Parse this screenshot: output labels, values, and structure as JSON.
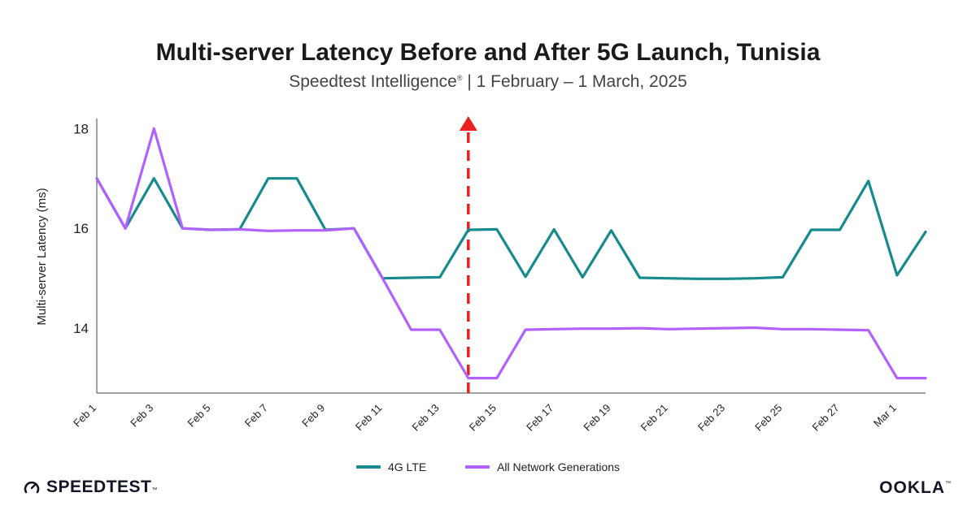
{
  "chart_data": {
    "type": "line",
    "title": "Multi-server Latency Before and After 5G Launch, Tunisia",
    "subtitle_prefix": "Speedtest Intelligence",
    "subtitle_suffix": " | 1 February – 1 March, 2025",
    "ylabel": "Multi-server Latency (ms)",
    "xlabel": "",
    "ylim": [
      12.7,
      18.2
    ],
    "yticks": [
      14,
      16,
      18
    ],
    "x": [
      "Feb 1",
      "Feb 2",
      "Feb 3",
      "Feb 4",
      "Feb 5",
      "Feb 6",
      "Feb 7",
      "Feb 8",
      "Feb 9",
      "Feb 10",
      "Feb 11",
      "Feb 12",
      "Feb 13",
      "Feb 14",
      "Feb 15",
      "Feb 16",
      "Feb 17",
      "Feb 18",
      "Feb 19",
      "Feb 20",
      "Feb 21",
      "Feb 22",
      "Feb 23",
      "Feb 24",
      "Feb 25",
      "Feb 26",
      "Feb 27",
      "Feb 28",
      "Mar 1",
      "Mar 2"
    ],
    "xtick_labels": [
      "Feb 1",
      "Feb 3",
      "Feb 5",
      "Feb 7",
      "Feb 9",
      "Feb 11",
      "Feb 13",
      "Feb 15",
      "Feb 17",
      "Feb 19",
      "Feb 21",
      "Feb 23",
      "Feb 25",
      "Feb 27",
      "Mar 1"
    ],
    "series": [
      {
        "name": "4G LTE",
        "color": "#168a8c",
        "values": [
          17.0,
          16.0,
          17.0,
          16.0,
          15.97,
          15.98,
          17.0,
          17.0,
          15.97,
          16.0,
          15.0,
          15.01,
          15.02,
          15.97,
          15.98,
          15.03,
          15.98,
          15.02,
          15.96,
          15.01,
          15.0,
          14.99,
          14.99,
          15.0,
          15.02,
          15.97,
          15.97,
          16.95,
          15.06,
          15.93
        ]
      },
      {
        "name": "All Network Generations",
        "color": "#b061ff",
        "values": [
          17.0,
          16.0,
          18.0,
          16.0,
          15.97,
          15.98,
          15.95,
          15.96,
          15.96,
          16.0,
          15.0,
          13.97,
          13.97,
          13.0,
          13.0,
          13.97,
          13.98,
          13.99,
          13.99,
          14.0,
          13.98,
          13.99,
          14.0,
          14.01,
          13.98,
          13.98,
          13.97,
          13.96,
          13.0,
          13.0
        ]
      }
    ],
    "annotation": {
      "type": "vertical-dashed-arrow",
      "x": "Feb 14",
      "color": "#e8211f",
      "label": ""
    },
    "grid": false,
    "legend_position": "bottom-center"
  },
  "branding": {
    "left_logo_text": "SPEEDTEST",
    "right_logo_text": "OOKLA"
  }
}
